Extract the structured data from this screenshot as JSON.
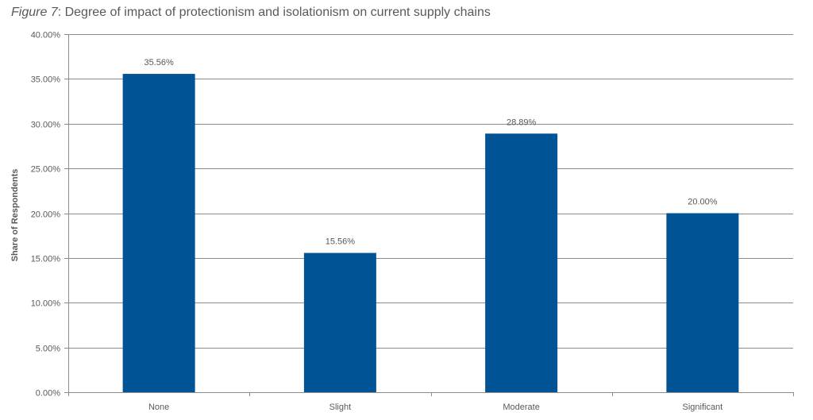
{
  "title": {
    "figure_label": "Figure 7",
    "text": ": Degree of impact of protectionism and isolationism on current supply chains"
  },
  "chart_data": {
    "type": "bar",
    "categories": [
      "None",
      "Slight",
      "Moderate",
      "Significant"
    ],
    "values": [
      35.56,
      15.56,
      28.89,
      20.0
    ],
    "data_labels": [
      "35.56%",
      "15.56%",
      "28.89%",
      "20.00%"
    ],
    "xlabel": "",
    "ylabel": "Share of Respondents",
    "ylim": [
      0,
      40
    ],
    "yticks": [
      0,
      5,
      10,
      15,
      20,
      25,
      30,
      35,
      40
    ],
    "ytick_labels": [
      "0.00%",
      "5.00%",
      "10.00%",
      "15.00%",
      "20.00%",
      "25.00%",
      "30.00%",
      "35.00%",
      "40.00%"
    ],
    "grid": true,
    "legend": "none",
    "bar_color": "#005496"
  }
}
